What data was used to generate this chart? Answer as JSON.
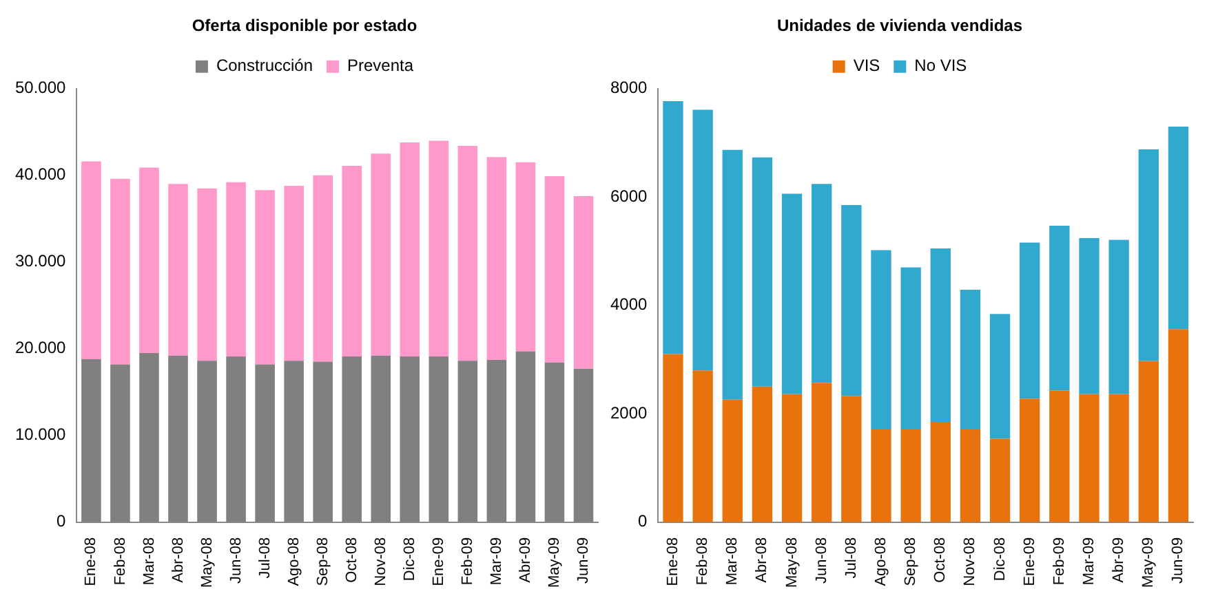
{
  "chart_data": [
    {
      "type": "bar",
      "title": "Oferta disponible por estado",
      "stacked": true,
      "legend": "top",
      "grid": false,
      "categories": [
        "Ene-08",
        "Feb-08",
        "Mar-08",
        "Abr-08",
        "May-08",
        "Jun-08",
        "Jul-08",
        "Ago-08",
        "Sep-08",
        "Oct-08",
        "Nov-08",
        "Dic-08",
        "Ene-09",
        "Feb-09",
        "Mar-09",
        "Abr-09",
        "May-09",
        "Jun-09"
      ],
      "series": [
        {
          "name": "Construcción",
          "color": "#808080",
          "values": [
            18800,
            18200,
            19500,
            19200,
            18600,
            19100,
            18200,
            18600,
            18500,
            19100,
            19200,
            19100,
            19100,
            18600,
            18700,
            19700,
            18400,
            17700
          ]
        },
        {
          "name": "Preventa",
          "color": "#ff99cc",
          "values": [
            22800,
            21400,
            21400,
            19800,
            19900,
            20100,
            20100,
            20200,
            21500,
            22000,
            23300,
            24700,
            24900,
            24800,
            23400,
            21800,
            21500,
            19900
          ]
        }
      ],
      "ylim": [
        0,
        50000
      ],
      "yticks": [
        {
          "value": 0,
          "label": "0"
        },
        {
          "value": 10000,
          "label": "10.000"
        },
        {
          "value": 20000,
          "label": "20.000"
        },
        {
          "value": 30000,
          "label": "30.000"
        },
        {
          "value": 40000,
          "label": "40.000"
        },
        {
          "value": 50000,
          "label": "50.000"
        }
      ]
    },
    {
      "type": "bar",
      "title": "Unidades de vivienda vendidas",
      "stacked": true,
      "legend": "top",
      "grid": false,
      "categories": [
        "Ene-08",
        "Feb-08",
        "Mar-08",
        "Abr-08",
        "May-08",
        "Jun-08",
        "Jul-08",
        "Ago-08",
        "Sep-08",
        "Oct-08",
        "Nov-08",
        "Dic-08",
        "Ene-09",
        "Feb-09",
        "Mar-09",
        "Abr-09",
        "May-09",
        "Jun-09"
      ],
      "series": [
        {
          "name": "VIS",
          "color": "#e8730c",
          "values": [
            3100,
            2800,
            2260,
            2500,
            2360,
            2570,
            2330,
            1710,
            1710,
            1850,
            1710,
            1540,
            2280,
            2430,
            2360,
            2360,
            2970,
            3560
          ]
        },
        {
          "name": "No VIS",
          "color": "#31a9cf",
          "values": [
            4670,
            4810,
            4610,
            4230,
            3700,
            3670,
            3520,
            3310,
            2990,
            3200,
            2580,
            2300,
            2880,
            3040,
            2880,
            2850,
            3910,
            3740
          ]
        }
      ],
      "ylim": [
        0,
        8000
      ],
      "yticks": [
        0,
        2000,
        4000,
        6000,
        8000
      ]
    }
  ]
}
